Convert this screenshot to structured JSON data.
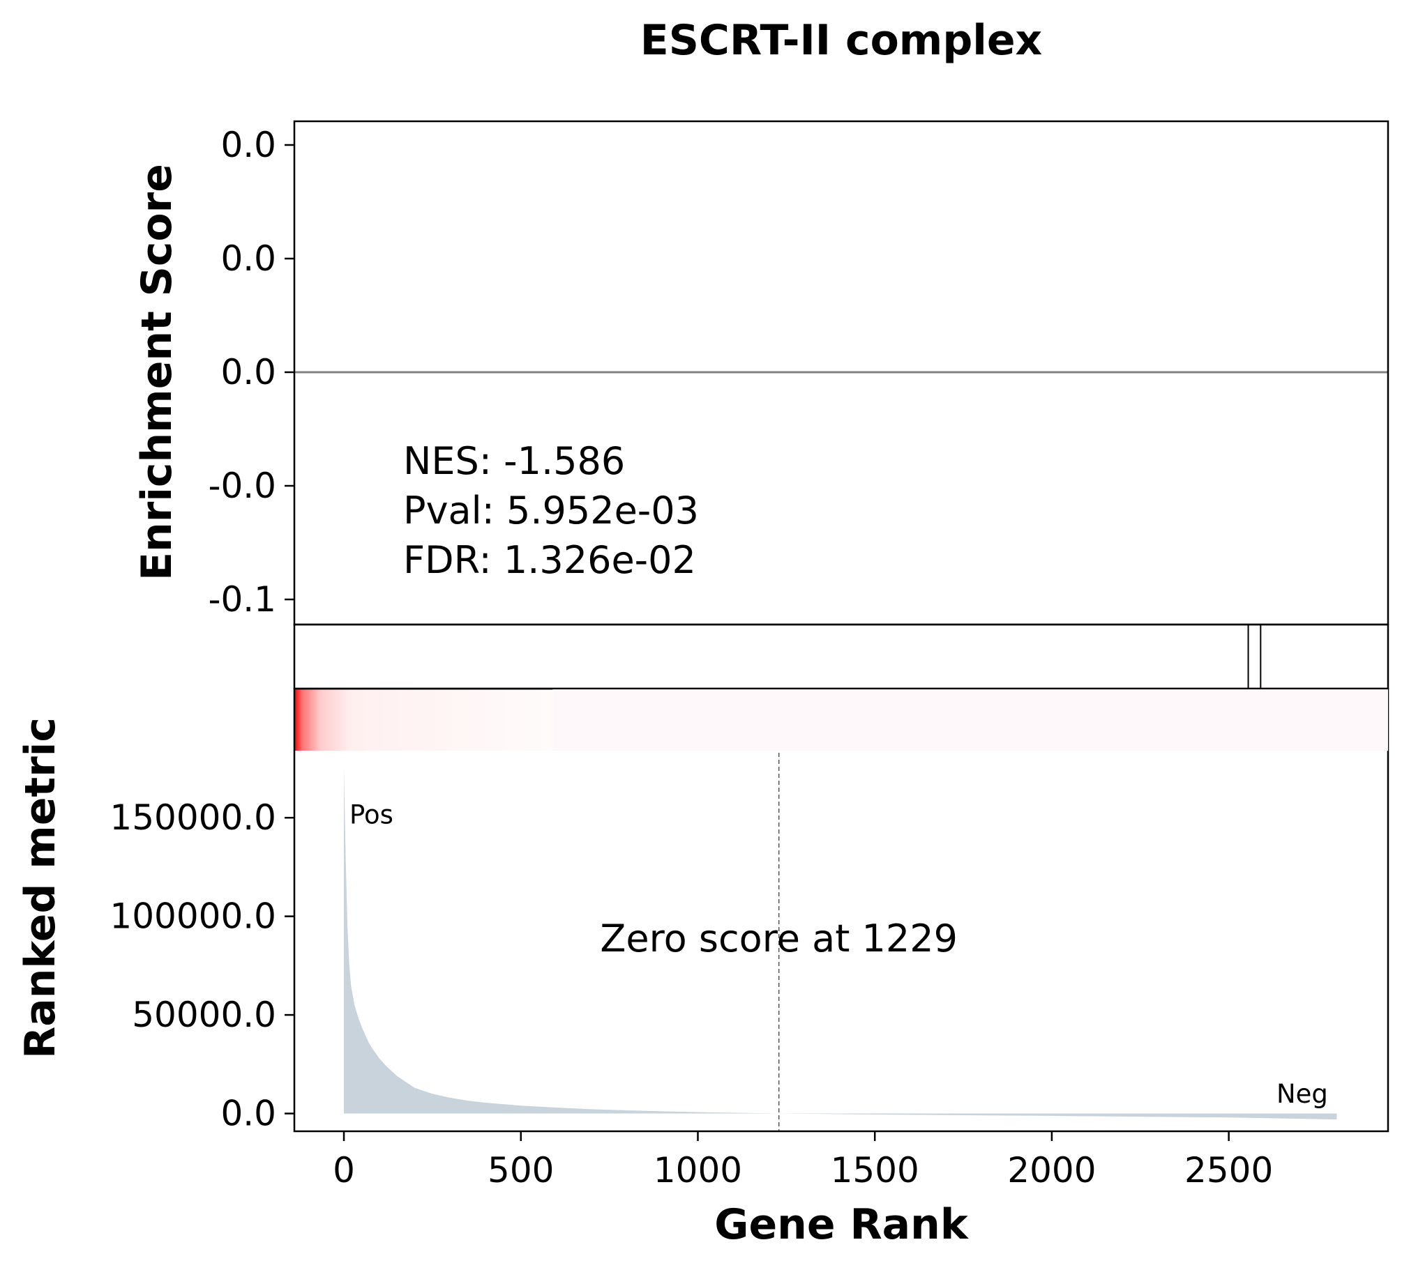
{
  "chart_data": {
    "type": "area",
    "title": "ESCRT-II complex",
    "xlabel": "Gene Rank",
    "enrichment_panel": {
      "ylabel": "Enrichment Score",
      "y_tick_labels": [
        "0.0",
        "0.0",
        "0.0",
        "-0.0",
        "-0.1"
      ],
      "baseline_value": 0.0,
      "stats_lines": [
        "NES: -1.586",
        "Pval: 5.952e-03",
        "FDR: 1.326e-02"
      ]
    },
    "hits": [
      2555,
      2590
    ],
    "heatmap": {
      "positive_color": "#ff0000",
      "fade_end_rank": 590
    },
    "ranked_metric_panel": {
      "ylabel": "Ranked metric",
      "y_ticks": [
        0,
        50000,
        100000,
        150000
      ],
      "y_tick_labels": [
        "0.0",
        "50000.0",
        "100000.0",
        "150000.0"
      ],
      "ylim": [
        -9000,
        184000
      ],
      "fill_color": "#c8d3dc",
      "curve_x": [
        0,
        5,
        10,
        15,
        20,
        30,
        40,
        50,
        60,
        70,
        80,
        100,
        120,
        150,
        200,
        250,
        300,
        350,
        400,
        500,
        600,
        700,
        800,
        900,
        1000,
        1229,
        1500,
        2000,
        2500,
        2805
      ],
      "curve_y": [
        175000,
        130000,
        95000,
        76000,
        65000,
        55000,
        49000,
        44000,
        40000,
        36000,
        33000,
        28000,
        24000,
        19000,
        13000,
        10000,
        8000,
        6500,
        5500,
        4000,
        3000,
        2200,
        1600,
        1100,
        700,
        0,
        -500,
        -1200,
        -2000,
        -3000
      ],
      "zero_score_rank": 1229,
      "zero_score_label": "Zero score at 1229",
      "pos_label": "Pos",
      "neg_label": "Neg",
      "pos_color": "#ff0000",
      "neg_color": "#0000ff"
    },
    "x_ticks": [
      0,
      500,
      1000,
      1500,
      2000,
      2500
    ],
    "x_tick_labels": [
      "0",
      "500",
      "1000",
      "1500",
      "2000",
      "2500"
    ],
    "xlim": [
      -140,
      2950
    ]
  }
}
